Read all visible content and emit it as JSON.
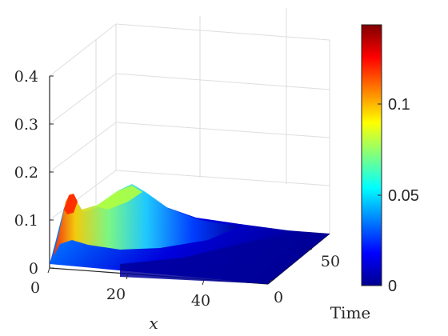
{
  "chart_data": {
    "type": "surface",
    "title": "",
    "xlabel": "x",
    "ylabel": "Time",
    "zlabel": "",
    "x_ticks": [
      "0",
      "20",
      "40"
    ],
    "time_ticks": [
      "0",
      "50"
    ],
    "z_ticks": [
      "0",
      "0.1",
      "0.2",
      "0.3",
      "0.4"
    ],
    "xlim": [
      0,
      60
    ],
    "time_lim": [
      0,
      60
    ],
    "zlim": [
      0,
      0.4
    ],
    "colorbar": {
      "colormap": "jet",
      "range": [
        0,
        0.14
      ],
      "ticks": [
        "0",
        "0.05",
        "0.1"
      ]
    },
    "grid": true,
    "surface_description_points": [
      {
        "x": 0,
        "time": 0,
        "z": 0.02
      },
      {
        "x": 5,
        "time": 15,
        "z": 0.14
      },
      {
        "x": 10,
        "time": 45,
        "z": 0.12
      },
      {
        "x": 30,
        "time": 45,
        "z": 0.05
      },
      {
        "x": 60,
        "time": 60,
        "z": 0.0
      }
    ]
  }
}
